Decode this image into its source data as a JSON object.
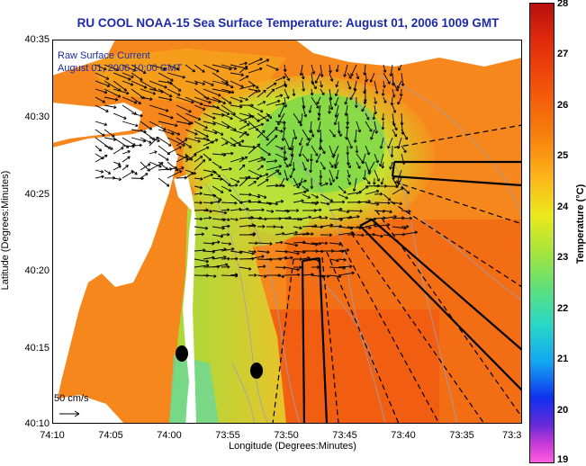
{
  "title": "RU COOL  NOAA-15  Sea Surface Temperature:  August 01, 2006 1009 GMT",
  "subtitle_1": "Raw Surface Current",
  "subtitle_2": "August 01, 2006 10:00 GMT",
  "scale_label": "50 cm/s",
  "axes": {
    "xlabel": "Longitude (Degrees:Minutes)",
    "ylabel": "Latitude (Degrees:Minutes)",
    "x_ticks": [
      "74:10",
      "74:05",
      "74:00",
      "73:55",
      "73:50",
      "73:45",
      "73:40",
      "73:35",
      "73:3"
    ],
    "y_ticks": [
      "40:35",
      "40:30",
      "40:25",
      "40:20",
      "40:15",
      "40:10"
    ]
  },
  "colorbar": {
    "label": "Temperature (°C)",
    "ticks": [
      "28",
      "27",
      "26",
      "25",
      "24",
      "23",
      "22",
      "21",
      "20",
      "19"
    ],
    "min": 19,
    "max": 28
  },
  "colors": {
    "title": "#1c2aa8",
    "land": "#ffffff",
    "warm_water": "#f7781a",
    "cool_water": "#8fe04a"
  }
}
